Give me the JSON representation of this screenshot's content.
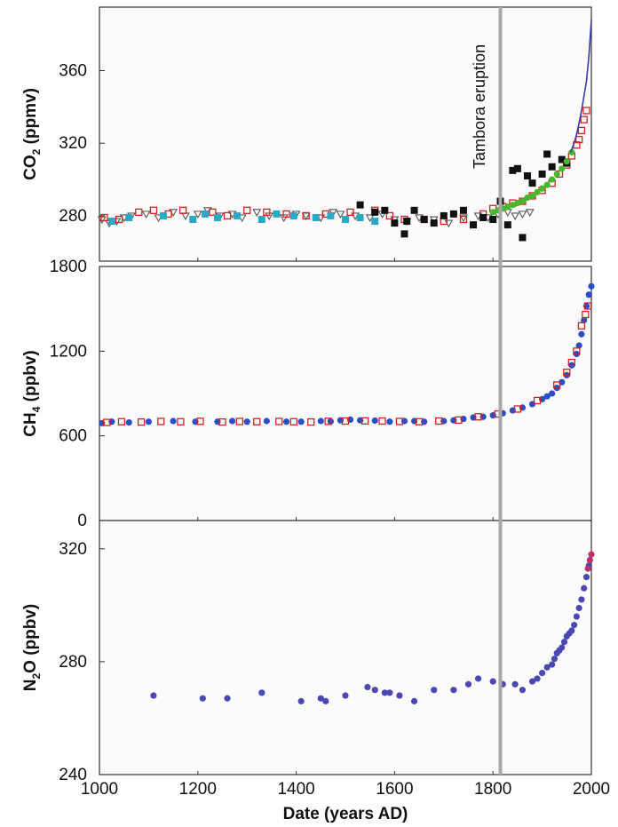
{
  "chart_data": [
    {
      "type": "scatter",
      "panel": "co2",
      "ylabel_main": "CO",
      "ylabel_sub": "2",
      "ylabel_rest": " (ppmv)",
      "xlim": [
        1000,
        2000
      ],
      "ylim": [
        255,
        395
      ],
      "yticks": [
        280,
        320,
        360
      ],
      "annotation": "Tambora eruption",
      "eruption_year": 1815,
      "series": [
        {
          "marker": "triangle-open",
          "color": "#555555",
          "x": [
            1005,
            1020,
            1035,
            1050,
            1065,
            1095,
            1120,
            1150,
            1175,
            1200,
            1220,
            1245,
            1270,
            1290,
            1320,
            1345,
            1375,
            1400,
            1420,
            1450,
            1475,
            1490,
            1520,
            1550,
            1575,
            1600,
            1625,
            1650,
            1680,
            1710,
            1740,
            1770,
            1790,
            1810,
            1830,
            1845,
            1860,
            1875
          ],
          "y": [
            278,
            276,
            277,
            279,
            280,
            281,
            279,
            282,
            280,
            281,
            283,
            280,
            281,
            279,
            282,
            280,
            279,
            281,
            280,
            279,
            282,
            281,
            280,
            279,
            281,
            278,
            277,
            279,
            278,
            276,
            279,
            280,
            279,
            281,
            282,
            280,
            281,
            282
          ]
        },
        {
          "marker": "square-open",
          "color": "#d62020",
          "x": [
            1010,
            1040,
            1080,
            1110,
            1140,
            1170,
            1230,
            1260,
            1300,
            1340,
            1380,
            1420,
            1460,
            1510,
            1560,
            1590,
            1620,
            1660,
            1700,
            1740,
            1780,
            1800,
            1820,
            1840,
            1860,
            1880,
            1900,
            1920,
            1935,
            1950,
            1960,
            1970,
            1975,
            1980,
            1985,
            1990
          ],
          "y": [
            279,
            278,
            282,
            283,
            281,
            283,
            282,
            280,
            283,
            282,
            281,
            280,
            281,
            282,
            283,
            280,
            278,
            278,
            277,
            278,
            281,
            284,
            285,
            287,
            288,
            291,
            294,
            298,
            303,
            308,
            313,
            319,
            322,
            327,
            333,
            338
          ]
        },
        {
          "marker": "square-filled",
          "color": "#2aa9c2",
          "x": [
            1025,
            1060,
            1130,
            1190,
            1215,
            1240,
            1280,
            1330,
            1360,
            1395,
            1440,
            1470,
            1500,
            1530,
            1560
          ],
          "y": [
            277,
            279,
            280,
            278,
            281,
            279,
            280,
            278,
            281,
            280,
            279,
            280,
            278,
            279,
            277
          ]
        },
        {
          "marker": "square-filled",
          "color": "#111111",
          "x": [
            1530,
            1560,
            1580,
            1600,
            1620,
            1625,
            1640,
            1660,
            1680,
            1700,
            1720,
            1740,
            1760,
            1780,
            1800,
            1815,
            1830,
            1840,
            1850,
            1860,
            1870,
            1880,
            1900,
            1910,
            1920,
            1940,
            1950
          ],
          "y": [
            286,
            282,
            283,
            276,
            270,
            277,
            283,
            278,
            276,
            280,
            281,
            283,
            275,
            279,
            278,
            288,
            275,
            305,
            306,
            268,
            302,
            298,
            303,
            314,
            307,
            311,
            309
          ]
        },
        {
          "marker": "circle-filled",
          "color": "#47b82c",
          "x": [
            1800,
            1810,
            1820,
            1830,
            1840,
            1850,
            1860,
            1870,
            1880,
            1890,
            1900,
            1910,
            1920,
            1930,
            1940,
            1950,
            1960
          ],
          "y": [
            282,
            283,
            284,
            285,
            286,
            287,
            288,
            290,
            291,
            293,
            295,
            297,
            300,
            303,
            306,
            310,
            315
          ]
        },
        {
          "marker": "line",
          "color": "#3a3aa6",
          "x": [
            1958,
            1965,
            1970,
            1975,
            1980,
            1985,
            1990,
            1995,
            2000
          ],
          "y": [
            315,
            320,
            325,
            331,
            338,
            346,
            354,
            368,
            388
          ]
        }
      ]
    },
    {
      "type": "scatter",
      "panel": "ch4",
      "ylabel_main": "CH",
      "ylabel_sub": "4",
      "ylabel_rest": " (ppbv)",
      "xlim": [
        1000,
        2000
      ],
      "ylim": [
        0,
        1800
      ],
      "yticks": [
        0,
        600,
        1200,
        1800
      ],
      "series": [
        {
          "marker": "circle-filled",
          "color": "#2a4fc4",
          "x": [
            1005,
            1025,
            1060,
            1100,
            1150,
            1195,
            1240,
            1270,
            1300,
            1340,
            1380,
            1410,
            1450,
            1470,
            1490,
            1510,
            1530,
            1560,
            1590,
            1620,
            1640,
            1660,
            1700,
            1720,
            1740,
            1760,
            1780,
            1800,
            1820,
            1840,
            1860,
            1880,
            1900,
            1910,
            1920,
            1930,
            1940,
            1950,
            1960,
            1970,
            1975,
            1980,
            1985,
            1990,
            1995,
            2000
          ],
          "y": [
            690,
            700,
            695,
            700,
            705,
            700,
            700,
            705,
            700,
            705,
            700,
            700,
            705,
            702,
            710,
            715,
            710,
            708,
            700,
            705,
            705,
            700,
            705,
            710,
            720,
            730,
            735,
            745,
            760,
            780,
            800,
            825,
            860,
            880,
            900,
            940,
            980,
            1030,
            1100,
            1180,
            1240,
            1320,
            1420,
            1520,
            1600,
            1660
          ]
        },
        {
          "marker": "square-open",
          "color": "#d62020",
          "x": [
            1015,
            1045,
            1085,
            1125,
            1165,
            1205,
            1250,
            1285,
            1320,
            1365,
            1395,
            1430,
            1465,
            1500,
            1540,
            1575,
            1610,
            1650,
            1690,
            1730,
            1770,
            1810,
            1850,
            1890,
            1930,
            1950,
            1960,
            1970,
            1980,
            1988,
            1993
          ],
          "y": [
            695,
            700,
            698,
            702,
            700,
            703,
            698,
            702,
            700,
            702,
            700,
            698,
            703,
            705,
            706,
            705,
            702,
            700,
            705,
            712,
            735,
            755,
            790,
            850,
            960,
            1050,
            1120,
            1200,
            1380,
            1460,
            1520
          ]
        }
      ]
    },
    {
      "type": "scatter",
      "panel": "n2o",
      "ylabel_main": "N",
      "ylabel_sub": "2",
      "ylabel_rest": "O (ppbv)",
      "xlim": [
        1000,
        2000
      ],
      "ylim": [
        240,
        330
      ],
      "yticks": [
        240,
        280,
        320
      ],
      "xticks": [
        1000,
        1200,
        1400,
        1600,
        1800,
        2000
      ],
      "xlabel": "Date (years AD)",
      "series": [
        {
          "marker": "circle-filled",
          "color": "#4a48b4",
          "x": [
            1110,
            1210,
            1260,
            1330,
            1410,
            1450,
            1460,
            1500,
            1545,
            1560,
            1580,
            1590,
            1610,
            1640,
            1680,
            1720,
            1750,
            1770,
            1800,
            1820,
            1845,
            1860,
            1880,
            1890,
            1900,
            1910,
            1920,
            1925,
            1930,
            1935,
            1940,
            1945,
            1950,
            1955,
            1960,
            1965,
            1970,
            1975,
            1980,
            1985,
            1990,
            1995
          ],
          "y": [
            268,
            267,
            267,
            269,
            266,
            267,
            266,
            268,
            271,
            270,
            269,
            269,
            268,
            266,
            270,
            270,
            272,
            274,
            273,
            272,
            272,
            270,
            273,
            274,
            276,
            278,
            279,
            281,
            283,
            284,
            285,
            287,
            289,
            290,
            291,
            293,
            296,
            299,
            302,
            306,
            310,
            314
          ]
        },
        {
          "marker": "circle-filled",
          "color": "#c0306a",
          "x": [
            1993,
            1997,
            2000
          ],
          "y": [
            313,
            316,
            318
          ]
        }
      ]
    }
  ]
}
